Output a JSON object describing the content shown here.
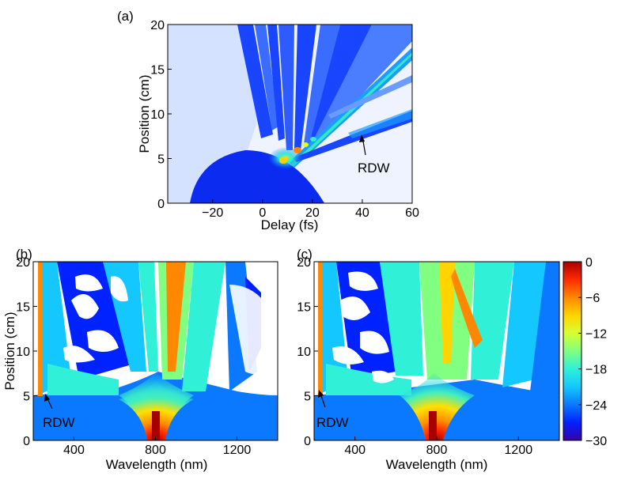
{
  "colors": {
    "colormap": [
      "#3a00a8",
      "#0022ff",
      "#0a78ff",
      "#14c8ff",
      "#30f0d8",
      "#80ff80",
      "#d8ff30",
      "#ffd400",
      "#ff8800",
      "#ff2a00",
      "#a80000"
    ],
    "background": "#ffffff"
  },
  "chart_data": [
    {
      "type": "heatmap",
      "panel_label": "(a)",
      "xlabel": "Delay (fs)",
      "ylabel": "Position (cm)",
      "xlim": [
        -38,
        60
      ],
      "ylim": [
        0,
        20
      ],
      "xticks": [
        -20,
        0,
        20,
        40,
        60
      ],
      "yticks": [
        0,
        5,
        10,
        15,
        20
      ],
      "xtick_labels": [
        "−20",
        "0",
        "20",
        "40",
        "60"
      ],
      "ytick_labels": [
        "0",
        "5",
        "10",
        "15",
        "20"
      ],
      "annotation": {
        "text": "RDW",
        "x": 40,
        "y": 7.9
      }
    },
    {
      "type": "heatmap",
      "panel_label": "(b)",
      "xlabel": "Wavelength (nm)",
      "ylabel": "Position (cm)",
      "xlim": [
        200,
        1400
      ],
      "ylim": [
        0,
        20
      ],
      "xticks": [
        400,
        800,
        1200
      ],
      "yticks": [
        0,
        5,
        10,
        15,
        20
      ],
      "xtick_labels": [
        "400",
        "800",
        "1200"
      ],
      "ytick_labels": [
        "0",
        "5",
        "10",
        "15",
        "20"
      ],
      "annotation": {
        "text": "RDW",
        "x": 245,
        "y": 5.8
      }
    },
    {
      "type": "heatmap",
      "panel_label": "(c)",
      "xlabel": "Wavelength (nm)",
      "ylabel": "",
      "xlim": [
        200,
        1400
      ],
      "ylim": [
        0,
        20
      ],
      "xticks": [
        400,
        800,
        1200
      ],
      "yticks": [
        0,
        5,
        10,
        15,
        20
      ],
      "xtick_labels": [
        "400",
        "800",
        "1200"
      ],
      "ytick_labels": [
        "0",
        "5",
        "10",
        "15",
        "20"
      ],
      "annotation": {
        "text": "RDW",
        "x": 240,
        "y": 6.2
      }
    }
  ],
  "colorbar": {
    "range": [
      -30,
      0
    ],
    "ticks": [
      0,
      -6,
      -12,
      -18,
      -24,
      -30
    ],
    "tick_labels": [
      "0",
      "−6",
      "−12",
      "−18",
      "−24",
      "−30"
    ]
  }
}
